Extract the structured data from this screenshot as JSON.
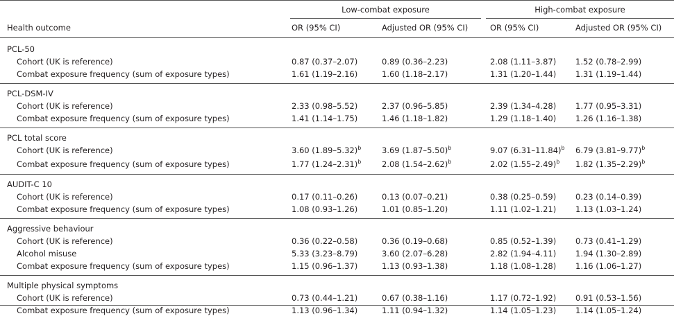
{
  "header": {
    "outcome_label": "Health outcome",
    "groups": [
      "Low-combat exposure",
      "High-combat exposure"
    ],
    "columns": [
      "OR (95% CI)",
      "Adjusted OR (95% CI)",
      "OR (95% CI)",
      "Adjusted OR (95% CI)"
    ]
  },
  "sections": [
    {
      "title": "PCL-50",
      "rows": [
        {
          "label": "Cohort (UK is reference)",
          "cells": [
            "0.87 (0.37–2.07)",
            "0.89 (0.36–2.23)",
            "2.08 (1.11–3.87)",
            "1.52 (0.78–2.99)"
          ]
        },
        {
          "label": "Combat exposure frequency (sum of exposure types)",
          "cells": [
            "1.61 (1.19–2.16)",
            "1.60 (1.18–2.17)",
            "1.31 (1.20–1.44)",
            "1.31 (1.19–1.44)"
          ]
        }
      ]
    },
    {
      "title": "PCL-DSM-IV",
      "rows": [
        {
          "label": "Cohort (UK is reference)",
          "cells": [
            "2.33 (0.98–5.52)",
            "2.37 (0.96–5.85)",
            "2.39 (1.34–4.28)",
            "1.77 (0.95–3.31)"
          ]
        },
        {
          "label": "Combat exposure frequency (sum of exposure types)",
          "cells": [
            "1.41 (1.14–1.75)",
            "1.46 (1.18–1.82)",
            "1.29 (1.18–1.40)",
            "1.26 (1.16–1.38)"
          ]
        }
      ]
    },
    {
      "title": "PCL total score",
      "rows": [
        {
          "label": "Cohort (UK is reference)",
          "cells": [
            {
              "text": "3.60 (1.89–5.32)",
              "sup": "b"
            },
            {
              "text": "3.69 (1.87–5.50)",
              "sup": "b"
            },
            {
              "text": "9.07 (6.31–11.84)",
              "sup": "b"
            },
            {
              "text": "6.79 (3.81–9.77)",
              "sup": "b"
            }
          ]
        },
        {
          "label": "Combat exposure frequency (sum of exposure types)",
          "cells": [
            {
              "text": "1.77 (1.24–2.31)",
              "sup": "b"
            },
            {
              "text": "2.08 (1.54–2.62)",
              "sup": "b"
            },
            {
              "text": "2.02 (1.55–2.49)",
              "sup": "b"
            },
            {
              "text": "1.82 (1.35–2.29)",
              "sup": "b"
            }
          ]
        }
      ]
    },
    {
      "title": "AUDIT-C 10",
      "rows": [
        {
          "label": "Cohort (UK is reference)",
          "cells": [
            "0.17 (0.11–0.26)",
            "0.13 (0.07–0.21)",
            "0.38 (0.25–0.59)",
            "0.23 (0.14–0.39)"
          ]
        },
        {
          "label": "Combat exposure frequency (sum of exposure types)",
          "cells": [
            "1.08 (0.93–1.26)",
            "1.01 (0.85–1.20)",
            "1.11 (1.02–1.21)",
            "1.13 (1.03–1.24)"
          ]
        }
      ]
    },
    {
      "title": "Aggressive behaviour",
      "rows": [
        {
          "label": "Cohort (UK is reference)",
          "cells": [
            "0.36 (0.22–0.58)",
            "0.36 (0.19–0.68)",
            "0.85 (0.52–1.39)",
            "0.73 (0.41–1.29)"
          ]
        },
        {
          "label": "Alcohol misuse",
          "cells": [
            "5.33 (3.23–8.79)",
            "3.60 (2.07–6.28)",
            "2.82 (1.94–4.11)",
            "1.94 (1.30–2.89)"
          ]
        },
        {
          "label": "Combat exposure frequency (sum of exposure types)",
          "cells": [
            "1.15 (0.96–1.37)",
            "1.13 (0.93–1.38)",
            "1.18 (1.08–1.28)",
            "1.16 (1.06–1.27)"
          ]
        }
      ]
    },
    {
      "title": "Multiple physical symptoms",
      "rows": [
        {
          "label": "Cohort (UK is reference)",
          "cells": [
            "0.73 (0.44–1.21)",
            "0.67 (0.38–1.16)",
            "1.17 (0.72–1.92)",
            "0.91 (0.53–1.56)"
          ]
        },
        {
          "label": "Combat exposure frequency (sum of exposure types)",
          "cells": [
            "1.13 (0.96–1.34)",
            "1.11 (0.94–1.32)",
            "1.14 (1.05–1.23)",
            "1.14 (1.05–1.24)"
          ]
        }
      ]
    }
  ]
}
